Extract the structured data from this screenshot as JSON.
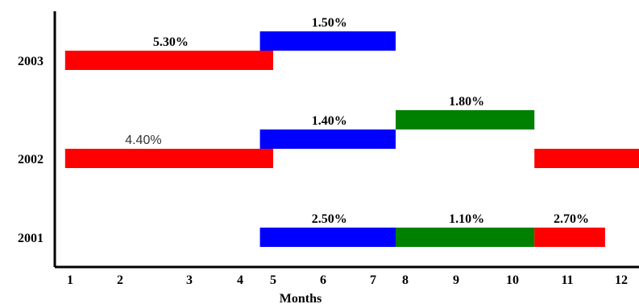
{
  "chart_data": {
    "type": "bar",
    "orientation": "horizontal-range",
    "xlabel": "Months",
    "x_ticks": [
      "1",
      "2",
      "3",
      "4",
      "5",
      "6",
      "7",
      "8",
      "9",
      "10",
      "11",
      "12"
    ],
    "categories": [
      "2003",
      "2002",
      "2001"
    ],
    "colors": {
      "red": "#ff0000",
      "blue": "#0000ff",
      "green": "#008000"
    },
    "bars": [
      {
        "category": "2003",
        "lane": 0,
        "start": 0.9,
        "end": 5.0,
        "color": "#ff0000",
        "label": "5.30%",
        "label_style": "bold"
      },
      {
        "category": "2003",
        "lane": 1,
        "start": 4.6,
        "end": 7.7,
        "color": "#0000ff",
        "label": "1.50%",
        "label_style": "bold"
      },
      {
        "category": "2002",
        "lane": 0,
        "start": 0.9,
        "end": 5.0,
        "color": "#ff0000",
        "label": "4.40%",
        "label_style": "plain"
      },
      {
        "category": "2002",
        "lane": 1,
        "start": 4.6,
        "end": 7.7,
        "color": "#0000ff",
        "label": "1.40%",
        "label_style": "bold"
      },
      {
        "category": "2002",
        "lane": 2,
        "start": 7.7,
        "end": 10.4,
        "color": "#008000",
        "label": "1.80%",
        "label_style": "bold"
      },
      {
        "category": "2002",
        "lane": 0,
        "start": 10.4,
        "end": 12.4,
        "color": "#ff0000",
        "label": "",
        "label_style": "bold"
      },
      {
        "category": "2001",
        "lane": 0,
        "start": 4.6,
        "end": 7.7,
        "color": "#0000ff",
        "label": "2.50%",
        "label_style": "bold"
      },
      {
        "category": "2001",
        "lane": 0,
        "start": 7.7,
        "end": 10.4,
        "color": "#008000",
        "label": "1.10%",
        "label_style": "bold"
      },
      {
        "category": "2001",
        "lane": 0,
        "start": 10.4,
        "end": 11.7,
        "color": "#ff0000",
        "label": "2.70%",
        "label_style": "bold"
      }
    ]
  }
}
